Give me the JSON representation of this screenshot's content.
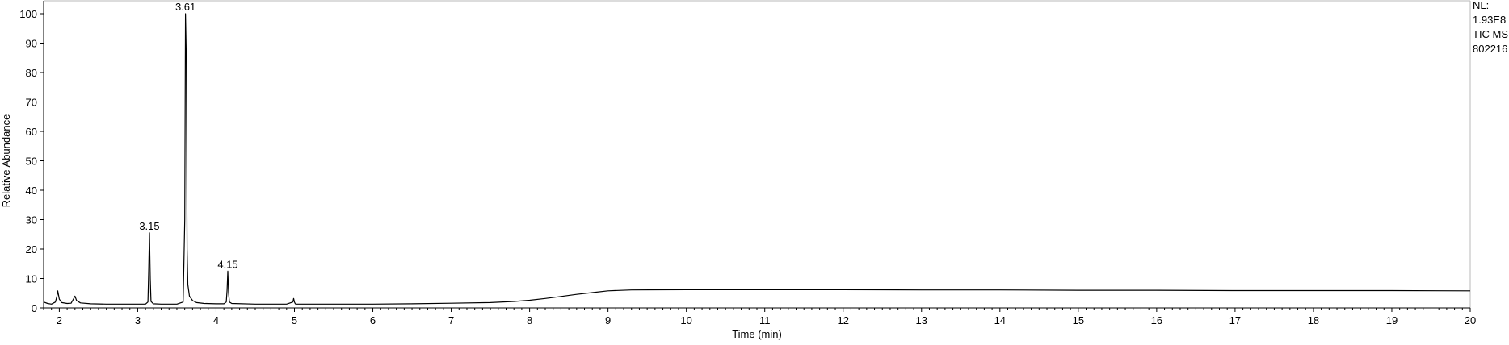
{
  "chart_data": {
    "type": "line",
    "title": "",
    "xlabel": "Time (min)",
    "ylabel": "Relative Abundance",
    "xlim": [
      1.8,
      20
    ],
    "ylim": [
      0,
      100
    ],
    "x_ticks": [
      2,
      3,
      4,
      5,
      6,
      7,
      8,
      9,
      10,
      11,
      12,
      13,
      14,
      15,
      16,
      17,
      18,
      19,
      20
    ],
    "y_ticks": [
      0,
      10,
      20,
      30,
      40,
      50,
      60,
      70,
      80,
      90,
      100
    ],
    "grid": false,
    "info": [
      "NL:",
      "1.93E8",
      "TIC  MS",
      "802216"
    ],
    "peak_labels": [
      {
        "x": 3.15,
        "y": 25.5,
        "label": "3.15"
      },
      {
        "x": 3.61,
        "y": 100,
        "label": "3.61"
      },
      {
        "x": 4.15,
        "y": 12.5,
        "label": "4.15"
      }
    ],
    "series": [
      {
        "x": [
          1.8,
          1.85,
          1.9,
          1.95,
          1.97,
          1.98,
          2.0,
          2.03,
          2.1,
          2.15,
          2.18,
          2.2,
          2.22,
          2.27,
          2.4,
          2.6,
          2.8,
          3.0,
          3.1,
          3.13,
          3.14,
          3.15,
          3.16,
          3.17,
          3.2,
          3.3,
          3.5,
          3.58,
          3.6,
          3.61,
          3.62,
          3.63,
          3.64,
          3.66,
          3.7,
          3.75,
          3.85,
          4.0,
          4.1,
          4.13,
          4.14,
          4.15,
          4.16,
          4.17,
          4.2,
          4.5,
          4.9,
          4.98,
          4.99,
          5.0,
          5.01,
          5.02,
          5.1,
          5.5,
          6.0,
          6.5,
          7.0,
          7.5,
          7.8,
          8.0,
          8.2,
          8.4,
          8.6,
          8.8,
          9.0,
          9.3,
          10.0,
          11.0,
          12.0,
          13.0,
          14.0,
          15.0,
          16.0,
          17.0,
          18.0,
          19.0,
          20.0
        ],
        "y": [
          2,
          1.5,
          1.3,
          2,
          4,
          5.8,
          3,
          1.8,
          1.5,
          1.6,
          3,
          4,
          2.5,
          1.7,
          1.4,
          1.3,
          1.3,
          1.3,
          1.3,
          2,
          12,
          25.5,
          10,
          2.2,
          1.4,
          1.3,
          1.3,
          2,
          30,
          100,
          85,
          20,
          8,
          4,
          2.5,
          1.8,
          1.5,
          1.4,
          1.4,
          2,
          6,
          12.5,
          5,
          2,
          1.5,
          1.3,
          1.3,
          2,
          3.2,
          2,
          1.4,
          1.3,
          1.3,
          1.3,
          1.3,
          1.4,
          1.6,
          1.8,
          2.2,
          2.6,
          3.2,
          3.9,
          4.6,
          5.2,
          5.8,
          6.1,
          6.2,
          6.2,
          6.2,
          6.1,
          6.1,
          6.0,
          6.0,
          5.9,
          5.9,
          5.9,
          5.8
        ]
      }
    ]
  }
}
